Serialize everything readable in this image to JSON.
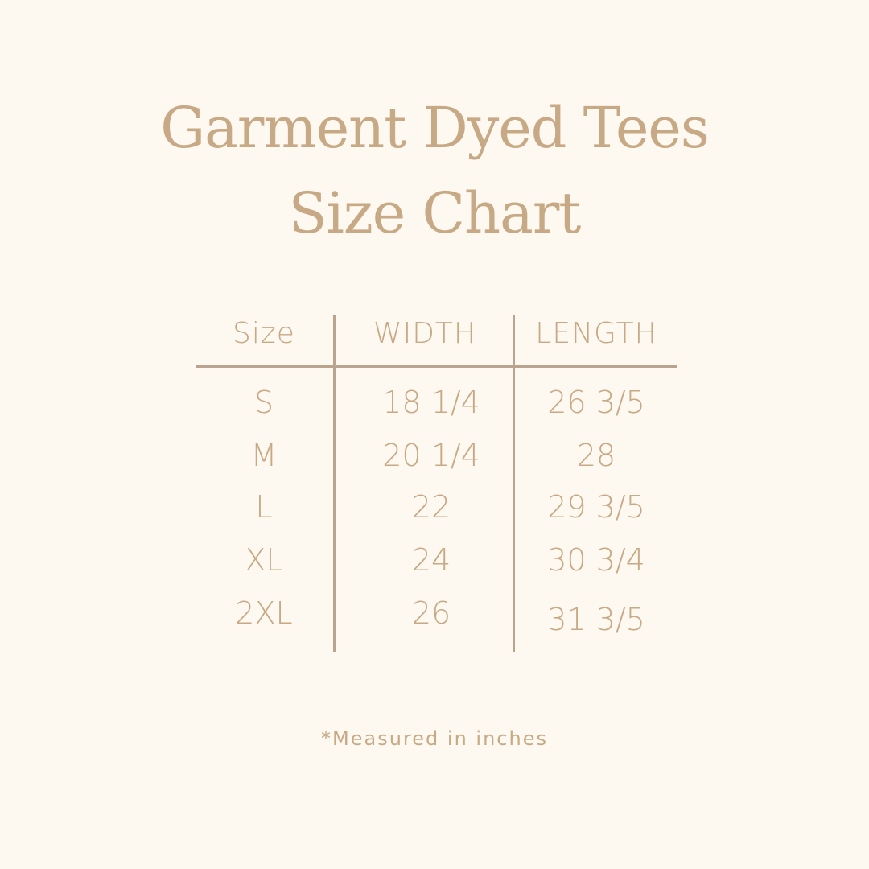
{
  "title": {
    "line1": "Garment Dyed Tees",
    "line2": "Size Chart"
  },
  "table": {
    "headers": [
      "Size",
      "WIDTH",
      "LENGTH"
    ],
    "rows": [
      [
        "S",
        "18 1/4",
        "26 3/5"
      ],
      [
        "M",
        "20 1/4",
        "28"
      ],
      [
        "L",
        "22",
        "29 3/5"
      ],
      [
        "XL",
        "24",
        "30 3/4"
      ],
      [
        "2XL",
        "26",
        "31 3/5"
      ]
    ]
  },
  "note": "*Measured in inches",
  "colors": {
    "background": "#fdf8f0",
    "text": "#c8a985",
    "lines": "#bba48d"
  }
}
